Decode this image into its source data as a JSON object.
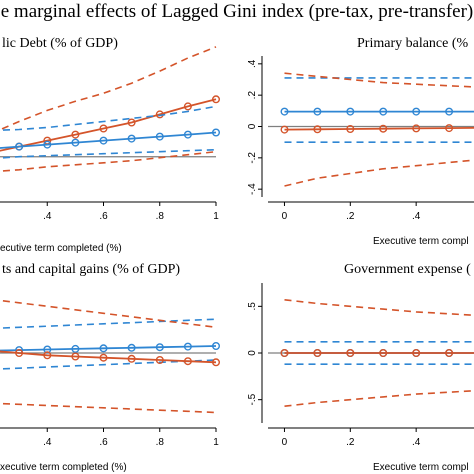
{
  "figure": {
    "title": "e marginal effects of Lagged Gini index (pre-tax, pre-transfer)"
  },
  "colors": {
    "orange": "#d4542a",
    "blue": "#2f86d3",
    "zero_line": "#7f7f7f",
    "axis": "#000000"
  },
  "chart_data": [
    {
      "type": "line",
      "title": "lic Debt (% of GDP)",
      "xlabel": "ecutive term completed (%)",
      "xlim": [
        0.2,
        1.0
      ],
      "ylim": [
        -0.4,
        1.0
      ],
      "xticks": [
        0.4,
        0.6,
        0.8,
        1.0
      ],
      "xtick_labels": [
        ".4",
        ".6",
        ".8",
        "1"
      ],
      "yticks": [],
      "ytick_labels": [],
      "zero_line": 0,
      "x": [
        0.2,
        0.3,
        0.4,
        0.5,
        0.6,
        0.7,
        0.8,
        0.9,
        1.0
      ],
      "series": [
        {
          "color": "orange",
          "values": [
            0.04,
            0.1,
            0.16,
            0.22,
            0.28,
            0.34,
            0.42,
            0.5,
            0.57
          ],
          "lower": [
            -0.15,
            -0.13,
            -0.1,
            -0.08,
            -0.06,
            -0.04,
            -0.01,
            0.02,
            0.05
          ],
          "upper": [
            0.23,
            0.35,
            0.46,
            0.55,
            0.63,
            0.73,
            0.85,
            0.98,
            1.09
          ]
        },
        {
          "color": "blue",
          "values": [
            0.08,
            0.1,
            0.12,
            0.14,
            0.16,
            0.18,
            0.2,
            0.22,
            0.24
          ],
          "lower": [
            -0.02,
            0.0,
            0.01,
            0.02,
            0.03,
            0.04,
            0.05,
            0.06,
            0.07
          ],
          "upper": [
            0.26,
            0.27,
            0.29,
            0.32,
            0.35,
            0.38,
            0.41,
            0.45,
            0.5
          ]
        }
      ]
    },
    {
      "type": "line",
      "title": "Primary balance (%",
      "xlabel": "Executive term compl",
      "xlim": [
        -0.05,
        0.6
      ],
      "ylim": [
        -0.45,
        0.45
      ],
      "xticks": [
        0,
        0.2,
        0.4
      ],
      "xtick_labels": [
        "0",
        ".2",
        ".4"
      ],
      "yticks": [
        -0.4,
        -0.2,
        0,
        0.2,
        0.4
      ],
      "ytick_labels": [
        "-.4",
        "-.2",
        "0",
        ".2",
        ".4"
      ],
      "zero_line": 0,
      "x": [
        0,
        0.1,
        0.2,
        0.3,
        0.4,
        0.5,
        0.6
      ],
      "series": [
        {
          "color": "blue",
          "values": [
            0.095,
            0.095,
            0.095,
            0.095,
            0.095,
            0.095,
            0.095
          ],
          "lower": [
            -0.1,
            -0.1,
            -0.1,
            -0.1,
            -0.1,
            -0.1,
            -0.1
          ],
          "upper": [
            0.31,
            0.31,
            0.31,
            0.31,
            0.31,
            0.31,
            0.31
          ]
        },
        {
          "color": "orange",
          "values": [
            -0.02,
            -0.018,
            -0.016,
            -0.014,
            -0.012,
            -0.01,
            -0.008
          ],
          "lower": [
            -0.38,
            -0.33,
            -0.3,
            -0.27,
            -0.25,
            -0.23,
            -0.21
          ],
          "upper": [
            0.34,
            0.32,
            0.3,
            0.28,
            0.27,
            0.26,
            0.25
          ]
        }
      ]
    },
    {
      "type": "line",
      "title": "ts and capital gains (% of GDP)",
      "xlabel": "xecutive term completed (%)",
      "xlim": [
        0.2,
        1.0
      ],
      "ylim": [
        -0.6,
        0.6
      ],
      "xticks": [
        0.4,
        0.6,
        0.8,
        1.0
      ],
      "xtick_labels": [
        ".4",
        ".6",
        ".8",
        "1"
      ],
      "yticks": [],
      "ytick_labels": [],
      "zero_line": 0,
      "x": [
        0.2,
        0.3,
        0.4,
        0.5,
        0.6,
        0.7,
        0.8,
        0.9,
        1.0
      ],
      "series": [
        {
          "color": "blue",
          "values": [
            0.02,
            0.025,
            0.03,
            0.035,
            0.04,
            0.045,
            0.05,
            0.055,
            0.06
          ],
          "lower": [
            -0.14,
            -0.13,
            -0.12,
            -0.11,
            -0.1,
            -0.09,
            -0.08,
            -0.07,
            -0.06
          ],
          "upper": [
            0.21,
            0.22,
            0.23,
            0.24,
            0.25,
            0.26,
            0.27,
            0.28,
            0.29
          ]
        },
        {
          "color": "orange",
          "values": [
            0.02,
            0.0,
            -0.02,
            -0.03,
            -0.04,
            -0.05,
            -0.06,
            -0.07,
            -0.08
          ],
          "lower": [
            -0.43,
            -0.44,
            -0.45,
            -0.46,
            -0.47,
            -0.48,
            -0.49,
            -0.5,
            -0.51
          ],
          "upper": [
            0.46,
            0.43,
            0.4,
            0.37,
            0.34,
            0.31,
            0.28,
            0.25,
            0.22
          ]
        }
      ]
    },
    {
      "type": "line",
      "title": "Government expense (",
      "xlabel": "Executive term compl",
      "xlim": [
        -0.05,
        0.6
      ],
      "ylim": [
        -0.75,
        0.75
      ],
      "xticks": [
        0,
        0.2,
        0.4
      ],
      "xtick_labels": [
        "0",
        ".2",
        ".4"
      ],
      "yticks": [
        -0.5,
        0,
        0.5
      ],
      "ytick_labels": [
        "-.5",
        "0",
        ".5"
      ],
      "zero_line": 0,
      "x": [
        0,
        0.1,
        0.2,
        0.3,
        0.4,
        0.5,
        0.6
      ],
      "series": [
        {
          "color": "blue",
          "values": [
            0.0,
            0.0,
            0.0,
            0.0,
            0.0,
            0.0,
            0.0
          ],
          "lower": [
            -0.12,
            -0.12,
            -0.12,
            -0.12,
            -0.12,
            -0.12,
            -0.12
          ],
          "upper": [
            0.12,
            0.12,
            0.12,
            0.12,
            0.12,
            0.12,
            0.12
          ]
        },
        {
          "color": "orange",
          "values": [
            0.0,
            0.0,
            0.0,
            0.0,
            0.0,
            0.0,
            0.0
          ],
          "lower": [
            -0.57,
            -0.53,
            -0.5,
            -0.47,
            -0.44,
            -0.42,
            -0.4
          ],
          "upper": [
            0.57,
            0.53,
            0.5,
            0.47,
            0.44,
            0.42,
            0.4
          ]
        }
      ]
    }
  ]
}
